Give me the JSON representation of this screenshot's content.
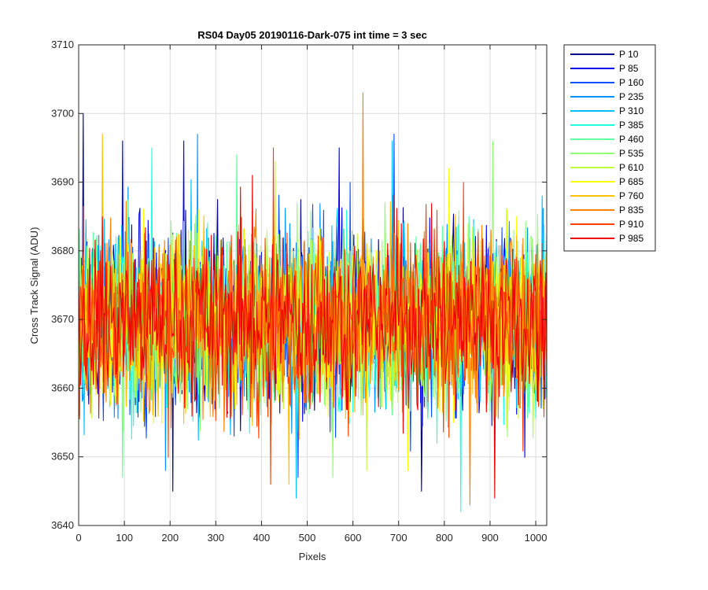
{
  "chart_data": {
    "type": "line",
    "title": "RS04 Day05 20190116-Dark-075 int time = 3 sec",
    "xlabel": "Pixels",
    "ylabel": "Cross Track Signal (ADU)",
    "xlim": [
      0,
      1024
    ],
    "ylim": [
      3640,
      3710
    ],
    "xticks": [
      0,
      100,
      200,
      300,
      400,
      500,
      600,
      700,
      800,
      900,
      1000
    ],
    "yticks": [
      3640,
      3650,
      3660,
      3670,
      3680,
      3690,
      3700,
      3710
    ],
    "grid": true,
    "legend_position": "outside-top-right",
    "series_summary": {
      "mean": 3670,
      "typical_range": [
        3652,
        3690
      ]
    },
    "series": [
      {
        "name": "P 10",
        "color": "#00008f",
        "outliers": [
          [
            10,
            3700
          ],
          [
            205,
            3645
          ],
          [
            750,
            3645
          ]
        ]
      },
      {
        "name": "P 85",
        "color": "#0000ef",
        "outliers": [
          [
            95,
            3696
          ],
          [
            230,
            3696
          ],
          [
            570,
            3695
          ]
        ]
      },
      {
        "name": "P 160",
        "color": "#0050ff",
        "outliers": [
          [
            690,
            3697
          ],
          [
            480,
            3647
          ]
        ]
      },
      {
        "name": "P 235",
        "color": "#0090ff",
        "outliers": [
          [
            260,
            3697
          ],
          [
            190,
            3648
          ]
        ]
      },
      {
        "name": "P 310",
        "color": "#00c0ff",
        "outliers": [
          [
            685,
            3696
          ],
          [
            475,
            3644
          ]
        ]
      },
      {
        "name": "P 385",
        "color": "#20ffdf",
        "outliers": [
          [
            160,
            3695
          ],
          [
            835,
            3642
          ]
        ]
      },
      {
        "name": "P 460",
        "color": "#60ffa0",
        "outliers": [
          [
            345,
            3694
          ],
          [
            95,
            3647
          ]
        ]
      },
      {
        "name": "P 535",
        "color": "#90ff70",
        "outliers": [
          [
            905,
            3696
          ],
          [
            555,
            3647
          ]
        ]
      },
      {
        "name": "P 610",
        "color": "#c0ff40",
        "outliers": [
          [
            430,
            3693
          ],
          [
            630,
            3648
          ]
        ]
      },
      {
        "name": "P 685",
        "color": "#ffff00",
        "outliers": [
          [
            810,
            3692
          ],
          [
            720,
            3648
          ]
        ]
      },
      {
        "name": "P 760",
        "color": "#ffc000",
        "outliers": [
          [
            52,
            3697
          ],
          [
            460,
            3646
          ]
        ]
      },
      {
        "name": "P 835",
        "color": "#ff8000",
        "outliers": [
          [
            622,
            3703
          ],
          [
            855,
            3643
          ]
        ]
      },
      {
        "name": "P 910",
        "color": "#ff4000",
        "outliers": [
          [
            425,
            3695
          ],
          [
            420,
            3646
          ]
        ]
      },
      {
        "name": "P 985",
        "color": "#ef0000",
        "outliers": [
          [
            380,
            3691
          ],
          [
            910,
            3644
          ]
        ]
      }
    ]
  }
}
